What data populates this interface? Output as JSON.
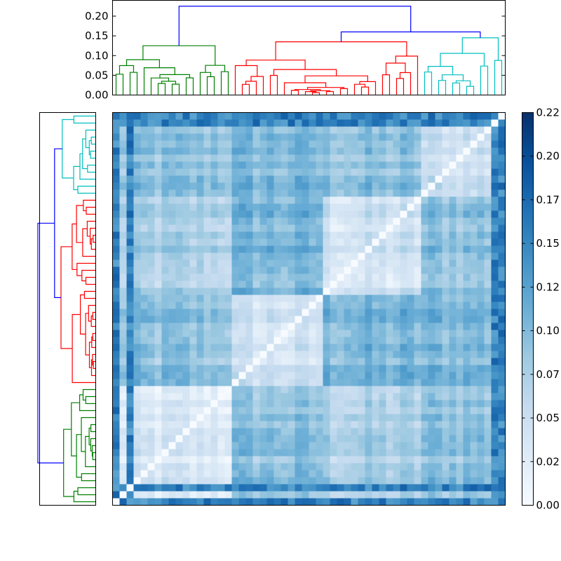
{
  "chart_data": {
    "type": "heatmap",
    "n_leaves": 56,
    "top_dendrogram": {
      "yticks": [
        "0.00",
        "0.05",
        "0.10",
        "0.15",
        "0.20"
      ],
      "ylim": [
        0,
        0.24
      ],
      "cluster_colors": [
        "#008000",
        "#ff0000",
        "#00bfbf"
      ],
      "root_color": "#0000ff",
      "root_height": 0.225,
      "upper_merge_height": 0.16,
      "cluster_sizes": [
        17,
        27,
        12
      ]
    },
    "left_dendrogram": {
      "cluster_colors": [
        "#00bfbf",
        "#ff0000",
        "#008000"
      ],
      "root_color": "#0000ff"
    },
    "heatmap": {
      "colormap": "Blues",
      "vmin": 0,
      "vmax": 0.22,
      "diagonal": 0,
      "block_sizes": [
        17,
        13,
        14,
        12
      ],
      "within_block_mean": 0.035,
      "between_block_mean": 0.095,
      "outlier_leaf_mean": 0.18
    },
    "colorbar": {
      "ticks": [
        "0.00",
        "0.02",
        "0.05",
        "0.07",
        "0.10",
        "0.12",
        "0.15",
        "0.17",
        "0.20",
        "0.22"
      ]
    }
  }
}
